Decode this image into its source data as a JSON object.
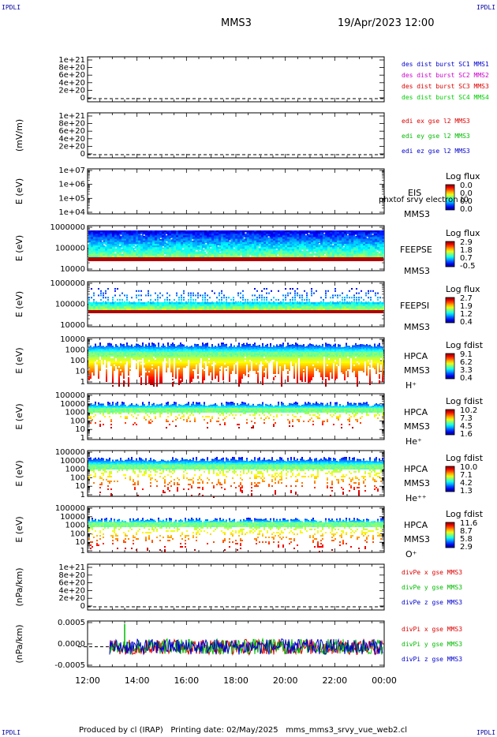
{
  "header": {
    "title": "MMS3",
    "datetime": "19/Apr/2023 12:00"
  },
  "corners": {
    "text": "IPDLI"
  },
  "footer": {
    "text": "Produced by cl (IRAP)   Printing date: 02/May/2025   mms_mms3_srvy_vue_web2.cl"
  },
  "x_ticks": [
    "12:00",
    "14:00",
    "16:00",
    "18:00",
    "20:00",
    "22:00",
    "00:00"
  ],
  "colors": {
    "mms1": "#0000cc",
    "mms2": "#cc00cc",
    "mms3": "#dd0000",
    "mms4": "#00cc00",
    "ex": "#dd0000",
    "ey": "#00bb00",
    "ez": "#0000cc"
  },
  "chart_data": [
    {
      "type": "line",
      "id": "des",
      "ylabel": "",
      "yticks": [
        "1e+21",
        "8e+20",
        "6e+20",
        "4e+20",
        "2e+20",
        "0"
      ],
      "legend": [
        "des dist burst SC1 MMS1",
        "des dist burst SC2 MMS2",
        "des dist burst SC3 MMS3",
        "des dist burst SC4 MMS4"
      ],
      "legend_colors": [
        "#0000cc",
        "#cc00cc",
        "#dd0000",
        "#00cc00"
      ],
      "series": []
    },
    {
      "type": "line",
      "id": "edi",
      "ylabel": "(mV/m)",
      "yticks": [
        "1e+21",
        "8e+20",
        "6e+20",
        "4e+20",
        "2e+20",
        "0"
      ],
      "legend": [
        "edi ex gse l2 MMS3",
        "edi ey gse l2 MMS3",
        "edi ez gse l2 MMS3"
      ],
      "legend_colors": [
        "#dd0000",
        "#00bb00",
        "#0000cc"
      ],
      "series": []
    },
    {
      "type": "heatmap",
      "id": "eis",
      "ylabel": "E (eV)",
      "yticks": [
        "1e+07",
        "1e+06",
        "1e+05",
        "1e+04"
      ],
      "instrument": [
        "EIS",
        "MMS3"
      ],
      "overlay_text": "phxtof  srvy electron t0",
      "cbar_title": "Log flux",
      "cbar_ticks": [
        "0.0",
        "0.0",
        "0.0",
        "0.0"
      ]
    },
    {
      "type": "heatmap",
      "id": "feepse",
      "ylabel": "E (eV)",
      "yticks": [
        "1000000",
        "100000",
        "10000"
      ],
      "instrument": [
        "FEEPSE",
        "MMS3"
      ],
      "cbar_title": "Log flux",
      "cbar_ticks": [
        "2.9",
        "1.8",
        "0.7",
        "-0.5"
      ]
    },
    {
      "type": "heatmap",
      "id": "feepsi",
      "ylabel": "E (eV)",
      "yticks": [
        "1000000",
        "100000",
        "10000"
      ],
      "instrument": [
        "FEEPSI",
        "MMS3"
      ],
      "cbar_title": "Log flux",
      "cbar_ticks": [
        "2.7",
        "1.9",
        "1.2",
        "0.4"
      ]
    },
    {
      "type": "heatmap",
      "id": "hpca_h",
      "ylabel": "E (eV)",
      "yticks": [
        "10000",
        "1000",
        "100",
        "10",
        "1"
      ],
      "instrument": [
        "HPCA",
        "MMS3",
        "H⁺"
      ],
      "cbar_title": "Log fdist",
      "cbar_ticks": [
        "9.1",
        "6.2",
        "3.3",
        "0.4"
      ]
    },
    {
      "type": "heatmap",
      "id": "hpca_he",
      "ylabel": "E (eV)",
      "yticks": [
        "100000",
        "10000",
        "1000",
        "100",
        "10",
        "1"
      ],
      "instrument": [
        "HPCA",
        "MMS3",
        "He⁺"
      ],
      "cbar_title": "Log fdist",
      "cbar_ticks": [
        "10.2",
        "7.3",
        "4.5",
        "1.6"
      ]
    },
    {
      "type": "heatmap",
      "id": "hpca_hepp",
      "ylabel": "E (eV)",
      "yticks": [
        "100000",
        "10000",
        "1000",
        "100",
        "10",
        "1"
      ],
      "instrument": [
        "HPCA",
        "MMS3",
        "He⁺⁺"
      ],
      "cbar_title": "Log fdist",
      "cbar_ticks": [
        "10.0",
        "7.1",
        "4.2",
        "1.3"
      ]
    },
    {
      "type": "heatmap",
      "id": "hpca_o",
      "ylabel": "E (eV)",
      "yticks": [
        "100000",
        "10000",
        "1000",
        "100",
        "10",
        "1"
      ],
      "instrument": [
        "HPCA",
        "MMS3",
        "O⁺"
      ],
      "cbar_title": "Log fdist",
      "cbar_ticks": [
        "11.6",
        "8.7",
        "5.8",
        "2.9"
      ]
    },
    {
      "type": "line",
      "id": "divpe",
      "ylabel": "(nPa/km)",
      "yticks": [
        "1e+21",
        "8e+20",
        "6e+20",
        "4e+20",
        "2e+20",
        "0"
      ],
      "legend": [
        "divPe x gse MMS3",
        "divPe y gse MMS3",
        "divPe z gse MMS3"
      ],
      "legend_colors": [
        "#dd0000",
        "#00bb00",
        "#0000cc"
      ],
      "series": []
    },
    {
      "type": "line",
      "id": "divpi",
      "ylabel": "(nPa/km)",
      "yticks": [
        "0.0005",
        "0.0000",
        "-0.0005"
      ],
      "legend": [
        "divPi x gse MMS3",
        "divPi y gse MMS3",
        "divPi z gse MMS3"
      ],
      "legend_colors": [
        "#dd0000",
        "#00bb00",
        "#0000cc"
      ],
      "xlim": [
        "12:00",
        "00:00"
      ],
      "ylim": [
        -0.0007,
        0.0009
      ],
      "series": [
        {
          "name": "divPi x gse MMS3",
          "x_start": "12:55",
          "values_range": [
            -0.0003,
            0.0003
          ]
        },
        {
          "name": "divPi y gse MMS3",
          "x_start": "12:55",
          "values_range": [
            -0.0003,
            0.0003
          ],
          "spike": {
            "x": "13:35",
            "y": 0.0008
          }
        },
        {
          "name": "divPi z gse MMS3",
          "x_start": "12:55",
          "values_range": [
            -0.0003,
            0.0003
          ]
        }
      ]
    }
  ]
}
